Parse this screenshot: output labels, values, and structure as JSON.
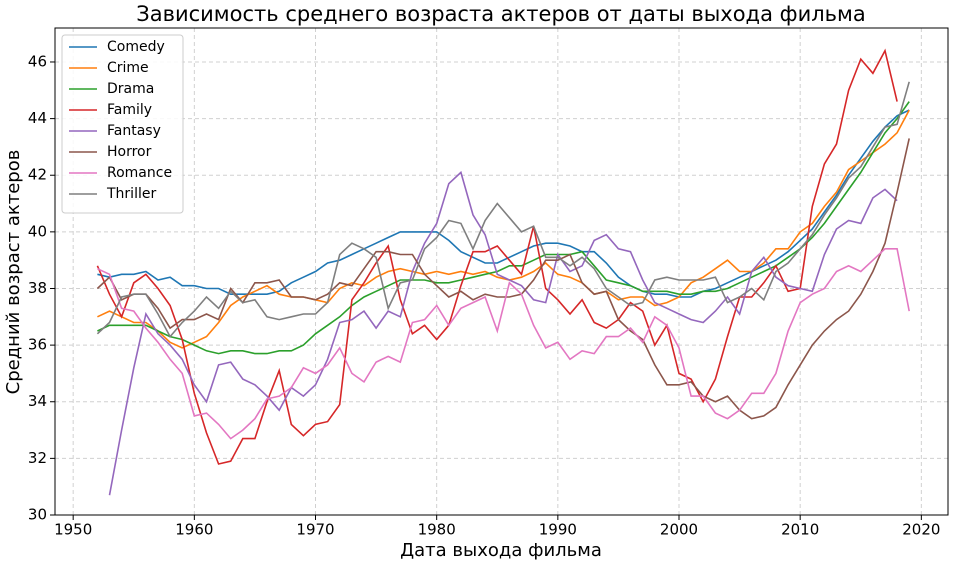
{
  "chart_data": {
    "type": "line",
    "title": "Зависимость среднего возраста актеров от даты выхода фильма",
    "xlabel": "Дата выхода фильма",
    "ylabel": "Средний возраст актеров",
    "x": [
      1952,
      1953,
      1954,
      1955,
      1956,
      1957,
      1958,
      1959,
      1960,
      1961,
      1962,
      1963,
      1964,
      1965,
      1966,
      1967,
      1968,
      1969,
      1970,
      1971,
      1972,
      1973,
      1974,
      1975,
      1976,
      1977,
      1978,
      1979,
      1980,
      1981,
      1982,
      1983,
      1984,
      1985,
      1986,
      1987,
      1988,
      1989,
      1990,
      1991,
      1992,
      1993,
      1994,
      1995,
      1996,
      1997,
      1998,
      1999,
      2000,
      2001,
      2002,
      2003,
      2004,
      2005,
      2006,
      2007,
      2008,
      2009,
      2010,
      2011,
      2012,
      2013,
      2014,
      2015,
      2016,
      2017,
      2018,
      2019
    ],
    "series": [
      {
        "name": "Comedy",
        "color": "#1f77b4",
        "values": [
          38.5,
          38.4,
          38.5,
          38.5,
          38.6,
          38.3,
          38.4,
          38.1,
          38.1,
          38.0,
          38.0,
          37.8,
          37.8,
          37.8,
          37.8,
          37.9,
          38.2,
          38.4,
          38.6,
          38.9,
          39.0,
          39.2,
          39.4,
          39.6,
          39.8,
          40.0,
          40.0,
          40.0,
          40.0,
          39.7,
          39.3,
          39.1,
          38.9,
          38.9,
          39.1,
          39.3,
          39.5,
          39.6,
          39.6,
          39.5,
          39.3,
          39.3,
          38.9,
          38.4,
          38.1,
          37.9,
          37.8,
          37.8,
          37.7,
          37.7,
          37.9,
          38.0,
          38.2,
          38.4,
          38.6,
          38.8,
          39.0,
          39.3,
          39.7,
          40.1,
          40.7,
          41.3,
          42.0,
          42.6,
          43.2,
          43.7,
          44.1,
          44.3
        ]
      },
      {
        "name": "Crime",
        "color": "#ff7f0e",
        "values": [
          37.0,
          37.2,
          37.0,
          36.8,
          36.8,
          36.5,
          36.1,
          35.9,
          36.1,
          36.3,
          36.8,
          37.4,
          37.7,
          37.9,
          38.1,
          37.8,
          37.7,
          37.7,
          37.6,
          37.5,
          38.0,
          38.2,
          38.1,
          38.4,
          38.6,
          38.7,
          38.6,
          38.5,
          38.6,
          38.5,
          38.6,
          38.5,
          38.6,
          38.4,
          38.3,
          38.4,
          38.6,
          38.9,
          38.5,
          38.4,
          38.2,
          37.8,
          37.9,
          37.6,
          37.7,
          37.7,
          37.4,
          37.5,
          37.7,
          38.2,
          38.4,
          38.7,
          39.0,
          38.6,
          38.6,
          38.9,
          39.4,
          39.4,
          40.0,
          40.3,
          40.9,
          41.4,
          42.2,
          42.5,
          42.8,
          43.1,
          43.5,
          44.3
        ]
      },
      {
        "name": "Drama",
        "color": "#2ca02c",
        "values": [
          36.5,
          36.7,
          36.7,
          36.7,
          36.7,
          36.5,
          36.3,
          36.2,
          36.0,
          35.8,
          35.7,
          35.8,
          35.8,
          35.7,
          35.7,
          35.8,
          35.8,
          36.0,
          36.4,
          36.7,
          37.0,
          37.4,
          37.7,
          37.9,
          38.1,
          38.3,
          38.3,
          38.3,
          38.2,
          38.2,
          38.3,
          38.4,
          38.5,
          38.6,
          38.8,
          38.8,
          39.0,
          39.2,
          39.2,
          39.2,
          39.3,
          38.8,
          38.3,
          38.2,
          38.1,
          37.9,
          37.9,
          37.9,
          37.8,
          37.8,
          37.9,
          37.9,
          38.0,
          38.2,
          38.4,
          38.6,
          38.8,
          39.1,
          39.4,
          39.8,
          40.3,
          40.9,
          41.5,
          42.1,
          42.8,
          43.5,
          44.0,
          44.6
        ]
      },
      {
        "name": "Family",
        "color": "#d62728",
        "values": [
          38.8,
          37.8,
          37.0,
          38.2,
          38.5,
          38.0,
          37.4,
          36.2,
          34.3,
          32.9,
          31.8,
          31.9,
          32.7,
          32.7,
          34.0,
          35.1,
          33.2,
          32.8,
          33.2,
          33.3,
          33.9,
          37.6,
          38.2,
          38.9,
          39.5,
          37.6,
          36.4,
          36.7,
          36.2,
          36.7,
          38.1,
          39.3,
          39.3,
          39.5,
          39.0,
          38.5,
          40.2,
          38.0,
          37.6,
          37.1,
          37.6,
          36.8,
          36.6,
          36.9,
          37.5,
          37.2,
          36.0,
          36.7,
          35.0,
          34.8,
          34.0,
          34.8,
          36.3,
          37.7,
          37.7,
          38.2,
          38.8,
          37.9,
          38.0,
          40.9,
          42.4,
          43.1,
          45.0,
          46.1,
          45.6,
          46.4,
          44.6,
          null
        ]
      },
      {
        "name": "Fantasy",
        "color": "#9467bd",
        "values": [
          null,
          30.7,
          33.0,
          35.2,
          37.1,
          36.4,
          36.0,
          35.5,
          34.6,
          34.0,
          35.3,
          35.4,
          34.8,
          34.6,
          34.2,
          33.7,
          34.5,
          34.2,
          34.6,
          35.5,
          36.8,
          36.9,
          37.2,
          36.6,
          37.2,
          37.0,
          38.6,
          39.6,
          40.3,
          41.7,
          42.1,
          40.6,
          39.9,
          38.5,
          38.3,
          38.1,
          37.6,
          37.5,
          39.2,
          38.6,
          38.8,
          39.7,
          39.9,
          39.4,
          39.3,
          38.3,
          37.5,
          37.3,
          37.1,
          36.9,
          36.8,
          37.2,
          37.7,
          37.1,
          38.6,
          39.1,
          38.4,
          38.1,
          38.0,
          37.9,
          39.2,
          40.1,
          40.4,
          40.3,
          41.2,
          41.5,
          41.1,
          null
        ]
      },
      {
        "name": "Horror",
        "color": "#8c564b",
        "values": [
          38.0,
          38.4,
          37.6,
          37.8,
          37.8,
          37.3,
          36.6,
          36.9,
          36.9,
          37.1,
          36.9,
          38.0,
          37.5,
          38.2,
          38.2,
          38.3,
          37.7,
          37.7,
          37.6,
          37.8,
          38.2,
          38.1,
          38.7,
          39.3,
          39.3,
          39.2,
          39.2,
          38.5,
          38.1,
          37.7,
          37.9,
          37.6,
          37.8,
          37.7,
          37.7,
          37.8,
          38.3,
          39.0,
          39.0,
          39.2,
          38.2,
          37.8,
          37.9,
          36.9,
          36.5,
          36.2,
          35.3,
          34.6,
          34.6,
          34.7,
          34.2,
          34.0,
          34.2,
          33.7,
          33.4,
          33.5,
          33.8,
          34.6,
          35.3,
          36.0,
          36.5,
          36.9,
          37.2,
          37.8,
          38.6,
          39.6,
          41.4,
          43.3
        ]
      },
      {
        "name": "Romance",
        "color": "#e377c2",
        "values": [
          38.7,
          38.5,
          37.3,
          37.2,
          36.6,
          36.1,
          35.5,
          35.0,
          33.5,
          33.6,
          33.2,
          32.7,
          33.0,
          33.4,
          34.1,
          34.2,
          34.5,
          35.2,
          35.0,
          35.3,
          35.9,
          35.0,
          34.7,
          35.4,
          35.6,
          35.4,
          36.8,
          36.9,
          37.4,
          36.7,
          37.3,
          37.5,
          37.7,
          36.5,
          38.2,
          37.8,
          36.7,
          35.9,
          36.1,
          35.5,
          35.8,
          35.7,
          36.3,
          36.3,
          36.6,
          36.1,
          37.0,
          36.7,
          35.9,
          34.2,
          34.2,
          33.6,
          33.4,
          33.7,
          34.3,
          34.3,
          35.0,
          36.5,
          37.5,
          37.8,
          38.0,
          38.6,
          38.8,
          38.6,
          39.0,
          39.4,
          39.4,
          37.2
        ]
      },
      {
        "name": "Thriller",
        "color": "#7f7f7f",
        "values": [
          36.4,
          36.8,
          37.7,
          37.8,
          37.8,
          37.1,
          36.3,
          36.8,
          37.2,
          37.7,
          37.3,
          37.9,
          37.5,
          37.6,
          37.0,
          36.9,
          37.0,
          37.1,
          37.1,
          37.5,
          39.2,
          39.6,
          39.4,
          39.1,
          37.3,
          38.2,
          38.3,
          39.4,
          39.8,
          40.4,
          40.3,
          39.4,
          40.4,
          41.0,
          40.5,
          40.0,
          40.2,
          39.1,
          39.1,
          38.8,
          39.1,
          38.7,
          38.0,
          37.7,
          37.4,
          37.5,
          38.3,
          38.4,
          38.3,
          38.3,
          38.3,
          38.4,
          37.5,
          37.7,
          38.0,
          37.6,
          38.6,
          38.9,
          39.4,
          39.9,
          40.6,
          41.2,
          41.9,
          42.3,
          43.0,
          43.7,
          43.8,
          45.3
        ]
      }
    ],
    "xlim": [
      1948.5,
      2022.2
    ],
    "xticks": [
      1950,
      1960,
      1970,
      1980,
      1990,
      2000,
      2010,
      2020
    ],
    "ylim": [
      30,
      47.2
    ],
    "yticks": [
      30,
      32,
      34,
      36,
      38,
      40,
      42,
      44,
      46
    ],
    "grid": true,
    "legend": "upper left"
  }
}
